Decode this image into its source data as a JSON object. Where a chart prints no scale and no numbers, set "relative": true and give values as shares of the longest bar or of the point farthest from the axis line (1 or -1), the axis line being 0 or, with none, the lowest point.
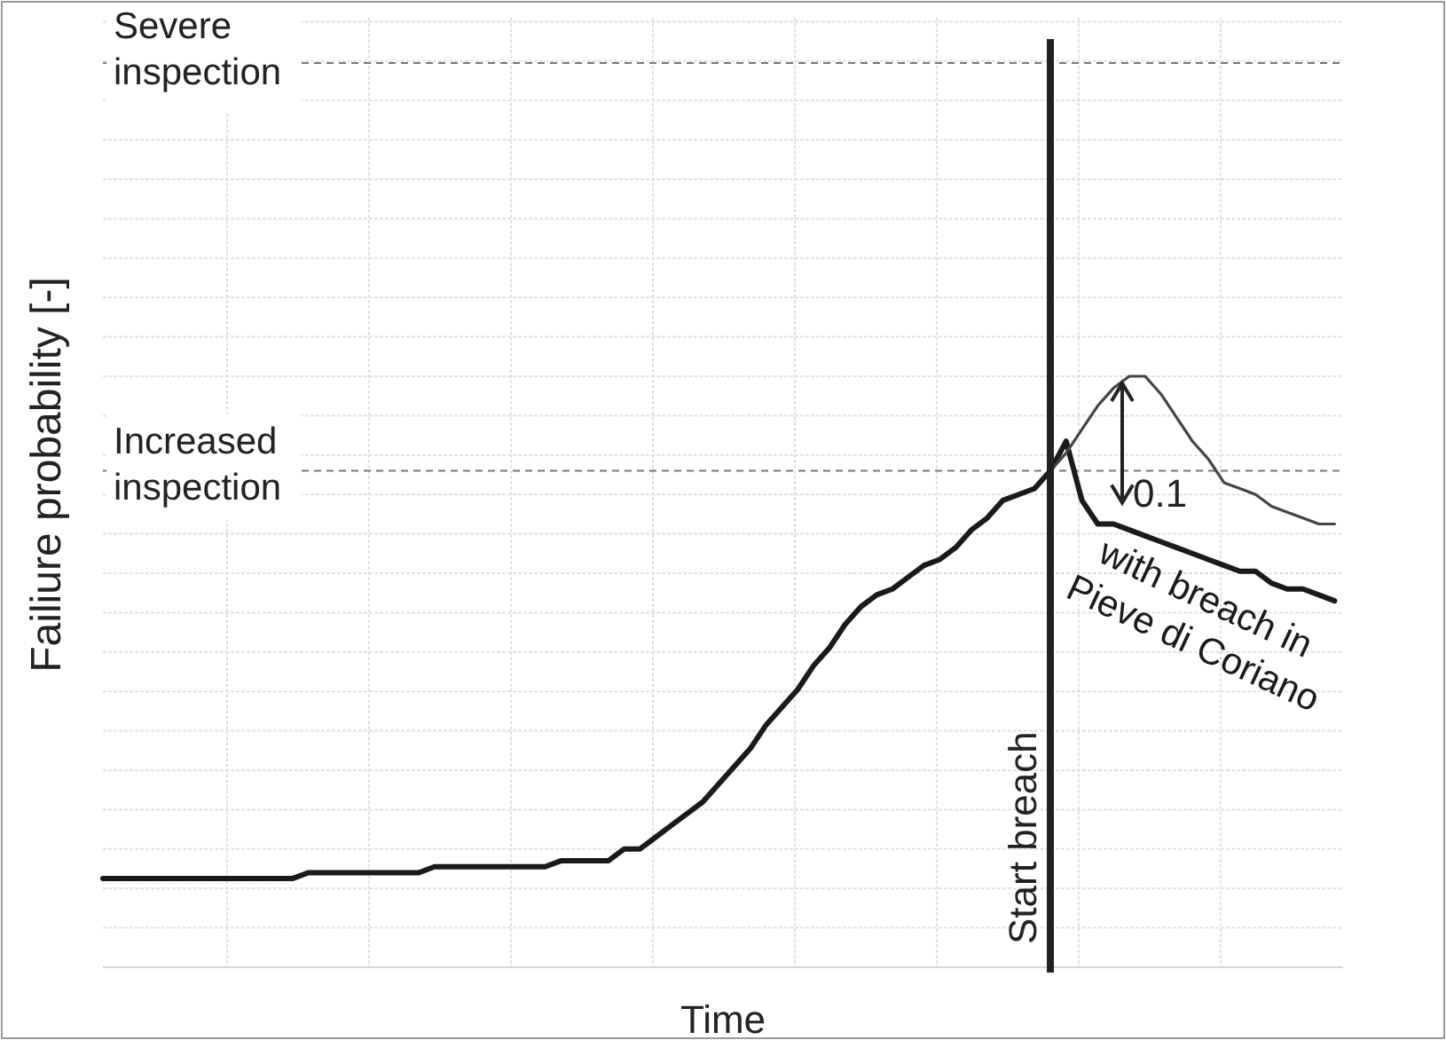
{
  "chart_data": {
    "type": "line",
    "relative": true,
    "xlabel": "Time",
    "ylabel": "Failiure probability [-]",
    "categories": [
      null,
      null,
      null,
      null,
      null,
      null,
      null,
      null,
      null,
      null,
      null,
      null,
      null,
      null,
      null,
      null,
      null,
      null,
      null,
      null,
      null,
      null,
      null,
      null,
      null,
      null,
      null,
      null,
      null,
      null,
      null,
      null,
      null,
      null,
      null,
      null,
      null,
      null,
      null,
      null,
      null,
      null,
      null,
      null,
      null,
      null,
      null,
      null,
      null,
      null,
      null,
      null,
      null,
      null,
      null,
      null,
      null,
      null,
      null,
      null,
      null,
      null,
      null,
      null,
      null,
      null,
      null,
      null,
      null,
      null,
      null,
      null,
      null,
      null,
      null,
      null,
      null,
      null,
      null
    ],
    "series": [
      {
        "name": "with breach in Pieve di Coriano",
        "color": "#1a1a1a",
        "values": [
          0.15,
          0.15,
          0.15,
          0.15,
          0.15,
          0.15,
          0.15,
          0.15,
          0.15,
          0.15,
          0.15,
          0.15,
          0.15,
          0.16,
          0.16,
          0.16,
          0.16,
          0.16,
          0.16,
          0.16,
          0.16,
          0.17,
          0.17,
          0.17,
          0.17,
          0.17,
          0.17,
          0.17,
          0.17,
          0.18,
          0.18,
          0.18,
          0.18,
          0.2,
          0.2,
          0.22,
          0.24,
          0.26,
          0.28,
          0.31,
          0.34,
          0.37,
          0.41,
          0.44,
          0.47,
          0.51,
          0.54,
          0.58,
          0.61,
          0.63,
          0.64,
          0.66,
          0.68,
          0.69,
          0.71,
          0.74,
          0.76,
          0.79,
          0.8,
          0.81,
          0.84,
          0.89,
          0.79,
          0.75,
          0.75,
          0.74,
          0.73,
          0.72,
          0.71,
          0.7,
          0.69,
          0.68,
          0.67,
          0.67,
          0.65,
          0.64,
          0.64,
          0.63,
          0.62
        ]
      },
      {
        "color": "#444444",
        "values": [
          null,
          null,
          null,
          null,
          null,
          null,
          null,
          null,
          null,
          null,
          null,
          null,
          null,
          null,
          null,
          null,
          null,
          null,
          null,
          null,
          null,
          null,
          null,
          null,
          null,
          null,
          null,
          null,
          null,
          null,
          null,
          null,
          null,
          null,
          null,
          null,
          null,
          null,
          null,
          null,
          null,
          null,
          null,
          null,
          null,
          null,
          null,
          null,
          null,
          null,
          null,
          null,
          null,
          null,
          null,
          null,
          null,
          null,
          null,
          null,
          0.84,
          0.87,
          0.91,
          0.95,
          0.98,
          1,
          1,
          0.97,
          0.93,
          0.89,
          0.86,
          0.82,
          0.81,
          0.8,
          0.78,
          0.77,
          0.76,
          0.75,
          0.75
        ]
      }
    ],
    "ref_lines": [
      {
        "axis": "y",
        "value": 1.53,
        "label": "Severe inspection",
        "color": "#777777",
        "line_style": "dashed"
      },
      {
        "axis": "y",
        "value": 0.84,
        "label": "Increased inspection",
        "color": "#777777",
        "line_style": "dashed"
      }
    ],
    "annotations": [
      "Start breach",
      "0.1"
    ],
    "grid": true,
    "marker": "none",
    "line_style": "solid",
    "legend": "right"
  }
}
